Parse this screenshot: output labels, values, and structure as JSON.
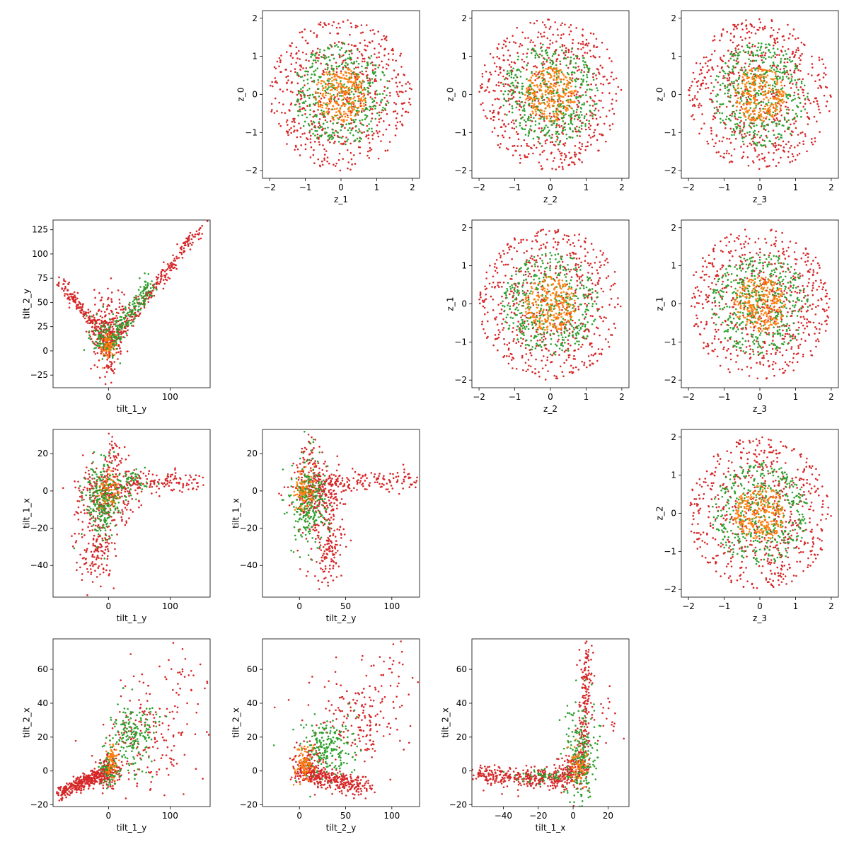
{
  "figure": {
    "layout": "scatter-matrix",
    "grid_rows": 4,
    "grid_cols": 4,
    "marker_shape": "dot",
    "colors": {
      "red": "#d62728",
      "green": "#2ca02c",
      "orange": "#ff7f0e"
    }
  },
  "chart_data": [
    {
      "id": "r0c1",
      "row": 0,
      "col": 1,
      "type": "scatter",
      "kind": "disk",
      "title": "",
      "xlabel": "z_1",
      "ylabel": "z_0",
      "xlim": [
        -2.2,
        2.2
      ],
      "ylim": [
        -2.2,
        2.2
      ],
      "xticks": [
        -2,
        -1,
        0,
        1,
        2
      ],
      "yticks": [
        -2,
        -1,
        0,
        1,
        2
      ],
      "grid": false,
      "series": [
        {
          "color": "#d62728",
          "radius_range": [
            0,
            2.0
          ],
          "count": 620,
          "seed": 11
        },
        {
          "color": "#2ca02c",
          "radius_range": [
            0,
            1.35
          ],
          "count": 420,
          "seed": 12
        },
        {
          "color": "#ff7f0e",
          "radius_range": [
            0,
            0.72
          ],
          "count": 260,
          "seed": 13
        }
      ]
    },
    {
      "id": "r0c2",
      "row": 0,
      "col": 2,
      "type": "scatter",
      "kind": "disk",
      "title": "",
      "xlabel": "z_2",
      "ylabel": "z_0",
      "xlim": [
        -2.2,
        2.2
      ],
      "ylim": [
        -2.2,
        2.2
      ],
      "xticks": [
        -2,
        -1,
        0,
        1,
        2
      ],
      "yticks": [
        -2,
        -1,
        0,
        1,
        2
      ],
      "grid": false,
      "series": [
        {
          "color": "#d62728",
          "radius_range": [
            0,
            2.0
          ],
          "count": 620,
          "seed": 21
        },
        {
          "color": "#2ca02c",
          "radius_range": [
            0,
            1.35
          ],
          "count": 420,
          "seed": 22
        },
        {
          "color": "#ff7f0e",
          "radius_range": [
            0,
            0.72
          ],
          "count": 260,
          "seed": 23
        }
      ]
    },
    {
      "id": "r0c3",
      "row": 0,
      "col": 3,
      "type": "scatter",
      "kind": "disk",
      "title": "",
      "xlabel": "z_3",
      "ylabel": "z_0",
      "xlim": [
        -2.2,
        2.2
      ],
      "ylim": [
        -2.2,
        2.2
      ],
      "xticks": [
        -2,
        -1,
        0,
        1,
        2
      ],
      "yticks": [
        -2,
        -1,
        0,
        1,
        2
      ],
      "grid": false,
      "series": [
        {
          "color": "#d62728",
          "radius_range": [
            0,
            2.0
          ],
          "count": 620,
          "seed": 31
        },
        {
          "color": "#2ca02c",
          "radius_range": [
            0,
            1.35
          ],
          "count": 420,
          "seed": 32
        },
        {
          "color": "#ff7f0e",
          "radius_range": [
            0,
            0.72
          ],
          "count": 260,
          "seed": 33
        }
      ]
    },
    {
      "id": "r1c2",
      "row": 1,
      "col": 2,
      "type": "scatter",
      "kind": "disk",
      "title": "",
      "xlabel": "z_2",
      "ylabel": "z_1",
      "xlim": [
        -2.2,
        2.2
      ],
      "ylim": [
        -2.2,
        2.2
      ],
      "xticks": [
        -2,
        -1,
        0,
        1,
        2
      ],
      "yticks": [
        -2,
        -1,
        0,
        1,
        2
      ],
      "grid": false,
      "series": [
        {
          "color": "#d62728",
          "radius_range": [
            0,
            2.0
          ],
          "count": 620,
          "seed": 41
        },
        {
          "color": "#2ca02c",
          "radius_range": [
            0,
            1.35
          ],
          "count": 420,
          "seed": 42
        },
        {
          "color": "#ff7f0e",
          "radius_range": [
            0,
            0.72
          ],
          "count": 260,
          "seed": 43
        }
      ]
    },
    {
      "id": "r1c3",
      "row": 1,
      "col": 3,
      "type": "scatter",
      "kind": "disk",
      "title": "",
      "xlabel": "z_3",
      "ylabel": "z_1",
      "xlim": [
        -2.2,
        2.2
      ],
      "ylim": [
        -2.2,
        2.2
      ],
      "xticks": [
        -2,
        -1,
        0,
        1,
        2
      ],
      "yticks": [
        -2,
        -1,
        0,
        1,
        2
      ],
      "grid": false,
      "series": [
        {
          "color": "#d62728",
          "radius_range": [
            0,
            2.0
          ],
          "count": 620,
          "seed": 51
        },
        {
          "color": "#2ca02c",
          "radius_range": [
            0,
            1.35
          ],
          "count": 420,
          "seed": 52
        },
        {
          "color": "#ff7f0e",
          "radius_range": [
            0,
            0.72
          ],
          "count": 260,
          "seed": 53
        }
      ]
    },
    {
      "id": "r2c3",
      "row": 2,
      "col": 3,
      "type": "scatter",
      "kind": "disk",
      "title": "",
      "xlabel": "z_3",
      "ylabel": "z_2",
      "xlim": [
        -2.2,
        2.2
      ],
      "ylim": [
        -2.2,
        2.2
      ],
      "xticks": [
        -2,
        -1,
        0,
        1,
        2
      ],
      "yticks": [
        -2,
        -1,
        0,
        1,
        2
      ],
      "grid": false,
      "series": [
        {
          "color": "#d62728",
          "radius_range": [
            0,
            2.0
          ],
          "count": 620,
          "seed": 61
        },
        {
          "color": "#2ca02c",
          "radius_range": [
            0,
            1.35
          ],
          "count": 420,
          "seed": 62
        },
        {
          "color": "#ff7f0e",
          "radius_range": [
            0,
            0.72
          ],
          "count": 260,
          "seed": 63
        }
      ]
    },
    {
      "id": "r1c0",
      "row": 1,
      "col": 0,
      "type": "scatter",
      "kind": "clusters",
      "title": "",
      "xlabel": "tilt_1_y",
      "ylabel": "tilt_2_y",
      "xlim": [
        -90,
        165
      ],
      "ylim": [
        -38,
        135
      ],
      "xticks": [
        0,
        100
      ],
      "yticks": [
        -25,
        0,
        25,
        50,
        75,
        100,
        125
      ],
      "grid": false,
      "series": [
        {
          "color": "#d62728",
          "seed": 71,
          "clusters": [
            {
              "line": [
                [
                  -78,
                  70
                ],
                [
                  -15,
                  22
                ]
              ],
              "n": 150,
              "sd": [
                4,
                4
              ]
            },
            {
              "line": [
                [
                  0,
                  5
                ],
                [
                  150,
                  128
                ]
              ],
              "n": 260,
              "sd": [
                4,
                4
              ]
            },
            {
              "cx": -5,
              "cy": 15,
              "sx": 12,
              "sy": 12,
              "n": 230
            },
            {
              "cx": 5,
              "cy": 40,
              "sx": 15,
              "sy": 12,
              "n": 70
            },
            {
              "cx": 0,
              "cy": -15,
              "sx": 5,
              "sy": 8,
              "n": 30
            }
          ]
        },
        {
          "color": "#2ca02c",
          "seed": 72,
          "clusters": [
            {
              "line": [
                [
                  0,
                  5
                ],
                [
                  70,
                  70
                ]
              ],
              "n": 200,
              "sd": [
                6,
                6
              ]
            },
            {
              "cx": -10,
              "cy": 15,
              "sx": 10,
              "sy": 10,
              "n": 80
            }
          ]
        },
        {
          "color": "#ff7f0e",
          "seed": 73,
          "clusters": [
            {
              "cx": 0,
              "cy": 5,
              "sx": 6,
              "sy": 6,
              "n": 60
            }
          ]
        }
      ]
    },
    {
      "id": "r2c0",
      "row": 2,
      "col": 0,
      "type": "scatter",
      "kind": "clusters",
      "title": "",
      "xlabel": "tilt_1_y",
      "ylabel": "tilt_1_x",
      "xlim": [
        -90,
        165
      ],
      "ylim": [
        -57,
        33
      ],
      "xticks": [
        0,
        100
      ],
      "yticks": [
        -40,
        -20,
        0,
        20
      ],
      "grid": false,
      "series": [
        {
          "color": "#d62728",
          "seed": 81,
          "clusters": [
            {
              "cx": 0,
              "cy": 0,
              "sx": 25,
              "sy": 8,
              "n": 300
            },
            {
              "line": [
                [
                  30,
                  5
                ],
                [
                  150,
                  5
                ]
              ],
              "n": 120,
              "sd": [
                5,
                3
              ]
            },
            {
              "cx": -20,
              "cy": -30,
              "sx": 15,
              "sy": 10,
              "n": 150
            },
            {
              "cx": 10,
              "cy": 20,
              "sx": 8,
              "sy": 5,
              "n": 30
            }
          ]
        },
        {
          "color": "#2ca02c",
          "seed": 82,
          "clusters": [
            {
              "cx": -10,
              "cy": -5,
              "sx": 15,
              "sy": 10,
              "n": 250
            },
            {
              "cx": 40,
              "cy": 5,
              "sx": 15,
              "sy": 3,
              "n": 50
            }
          ]
        },
        {
          "color": "#ff7f0e",
          "seed": 83,
          "clusters": [
            {
              "cx": 0,
              "cy": 0,
              "sx": 8,
              "sy": 5,
              "n": 60
            }
          ]
        }
      ]
    },
    {
      "id": "r2c1",
      "row": 2,
      "col": 1,
      "type": "scatter",
      "kind": "clusters",
      "title": "",
      "xlabel": "tilt_2_y",
      "ylabel": "tilt_1_x",
      "xlim": [
        -40,
        130
      ],
      "ylim": [
        -57,
        33
      ],
      "xticks": [
        0,
        50,
        100
      ],
      "yticks": [
        -40,
        -20,
        0,
        20
      ],
      "grid": false,
      "series": [
        {
          "color": "#d62728",
          "seed": 91,
          "clusters": [
            {
              "cx": 20,
              "cy": 0,
              "sx": 15,
              "sy": 8,
              "n": 300
            },
            {
              "line": [
                [
                  40,
                  5
                ],
                [
                  125,
                  5
                ]
              ],
              "n": 120,
              "sd": [
                6,
                3
              ]
            },
            {
              "cx": 30,
              "cy": -30,
              "sx": 10,
              "sy": 10,
              "n": 150
            },
            {
              "cx": 10,
              "cy": 20,
              "sx": 6,
              "sy": 5,
              "n": 30
            }
          ]
        },
        {
          "color": "#2ca02c",
          "seed": 92,
          "clusters": [
            {
              "cx": 10,
              "cy": -5,
              "sx": 10,
              "sy": 12,
              "n": 250
            }
          ]
        },
        {
          "color": "#ff7f0e",
          "seed": 93,
          "clusters": [
            {
              "cx": 5,
              "cy": 0,
              "sx": 5,
              "sy": 6,
              "n": 80
            }
          ]
        }
      ]
    },
    {
      "id": "r3c0",
      "row": 3,
      "col": 0,
      "type": "scatter",
      "kind": "clusters",
      "title": "",
      "xlabel": "tilt_1_y",
      "ylabel": "tilt_2_x",
      "xlim": [
        -90,
        165
      ],
      "ylim": [
        -21,
        78
      ],
      "xticks": [
        0,
        100
      ],
      "yticks": [
        -20,
        0,
        20,
        40,
        60
      ],
      "grid": false,
      "series": [
        {
          "color": "#d62728",
          "seed": 101,
          "clusters": [
            {
              "line": [
                [
                  -80,
                  -13
                ],
                [
                  0,
                  0
                ]
              ],
              "n": 350,
              "sd": [
                5,
                2
              ]
            },
            {
              "cx": 0,
              "cy": 0,
              "sx": 10,
              "sy": 5,
              "n": 150
            },
            {
              "cx": 60,
              "cy": 20,
              "sx": 35,
              "sy": 15,
              "n": 180
            },
            {
              "cx": 120,
              "cy": 55,
              "sx": 20,
              "sy": 10,
              "n": 30
            }
          ]
        },
        {
          "color": "#2ca02c",
          "seed": 102,
          "clusters": [
            {
              "cx": 40,
              "cy": 20,
              "sx": 20,
              "sy": 10,
              "n": 180
            },
            {
              "cx": 0,
              "cy": 0,
              "sx": 8,
              "sy": 5,
              "n": 60
            }
          ]
        },
        {
          "color": "#ff7f0e",
          "seed": 103,
          "clusters": [
            {
              "cx": 5,
              "cy": 5,
              "sx": 5,
              "sy": 5,
              "n": 60
            }
          ]
        }
      ]
    },
    {
      "id": "r3c1",
      "row": 3,
      "col": 1,
      "type": "scatter",
      "kind": "clusters",
      "title": "",
      "xlabel": "tilt_2_y",
      "ylabel": "tilt_2_x",
      "xlim": [
        -40,
        130
      ],
      "ylim": [
        -21,
        78
      ],
      "xticks": [
        0,
        50,
        100
      ],
      "yticks": [
        -20,
        0,
        20,
        40,
        60
      ],
      "grid": false,
      "series": [
        {
          "color": "#d62728",
          "seed": 111,
          "clusters": [
            {
              "line": [
                [
                  0,
                  0
                ],
                [
                  70,
                  -10
                ]
              ],
              "n": 350,
              "sd": [
                6,
                3
              ]
            },
            {
              "cx": 60,
              "cy": 30,
              "sx": 25,
              "sy": 15,
              "n": 180
            },
            {
              "cx": 100,
              "cy": 55,
              "sx": 15,
              "sy": 10,
              "n": 30
            },
            {
              "cx": 10,
              "cy": 5,
              "sx": 8,
              "sy": 6,
              "n": 100
            }
          ]
        },
        {
          "color": "#2ca02c",
          "seed": 112,
          "clusters": [
            {
              "cx": 30,
              "cy": 15,
              "sx": 15,
              "sy": 10,
              "n": 200
            }
          ]
        },
        {
          "color": "#ff7f0e",
          "seed": 113,
          "clusters": [
            {
              "cx": 5,
              "cy": 5,
              "sx": 5,
              "sy": 5,
              "n": 80
            }
          ]
        }
      ]
    },
    {
      "id": "r3c2",
      "row": 3,
      "col": 2,
      "type": "scatter",
      "kind": "clusters",
      "title": "",
      "xlabel": "tilt_1_x",
      "ylabel": "tilt_2_x",
      "xlim": [
        -58,
        32
      ],
      "ylim": [
        -21,
        78
      ],
      "xticks": [
        -40,
        -20,
        0,
        20
      ],
      "yticks": [
        -20,
        0,
        20,
        40,
        60
      ],
      "grid": false,
      "series": [
        {
          "color": "#d62728",
          "seed": 121,
          "clusters": [
            {
              "line": [
                [
                  -55,
                  -2
                ],
                [
                  0,
                  -5
                ]
              ],
              "n": 350,
              "sd": [
                3,
                3
              ]
            },
            {
              "line": [
                [
                  5,
                  0
                ],
                [
                  8,
                  70
                ]
              ],
              "n": 200,
              "sd": [
                2,
                5
              ]
            },
            {
              "cx": 0,
              "cy": 0,
              "sx": 5,
              "sy": 5,
              "n": 100
            },
            {
              "cx": 20,
              "cy": 30,
              "sx": 5,
              "sy": 10,
              "n": 20
            }
          ]
        },
        {
          "color": "#2ca02c",
          "seed": 122,
          "clusters": [
            {
              "cx": 5,
              "cy": 10,
              "sx": 5,
              "sy": 15,
              "n": 200
            },
            {
              "cx": -15,
              "cy": -3,
              "sx": 10,
              "sy": 2,
              "n": 60
            }
          ]
        },
        {
          "color": "#ff7f0e",
          "seed": 123,
          "clusters": [
            {
              "cx": 3,
              "cy": 3,
              "sx": 3,
              "sy": 5,
              "n": 60
            }
          ]
        }
      ]
    }
  ]
}
